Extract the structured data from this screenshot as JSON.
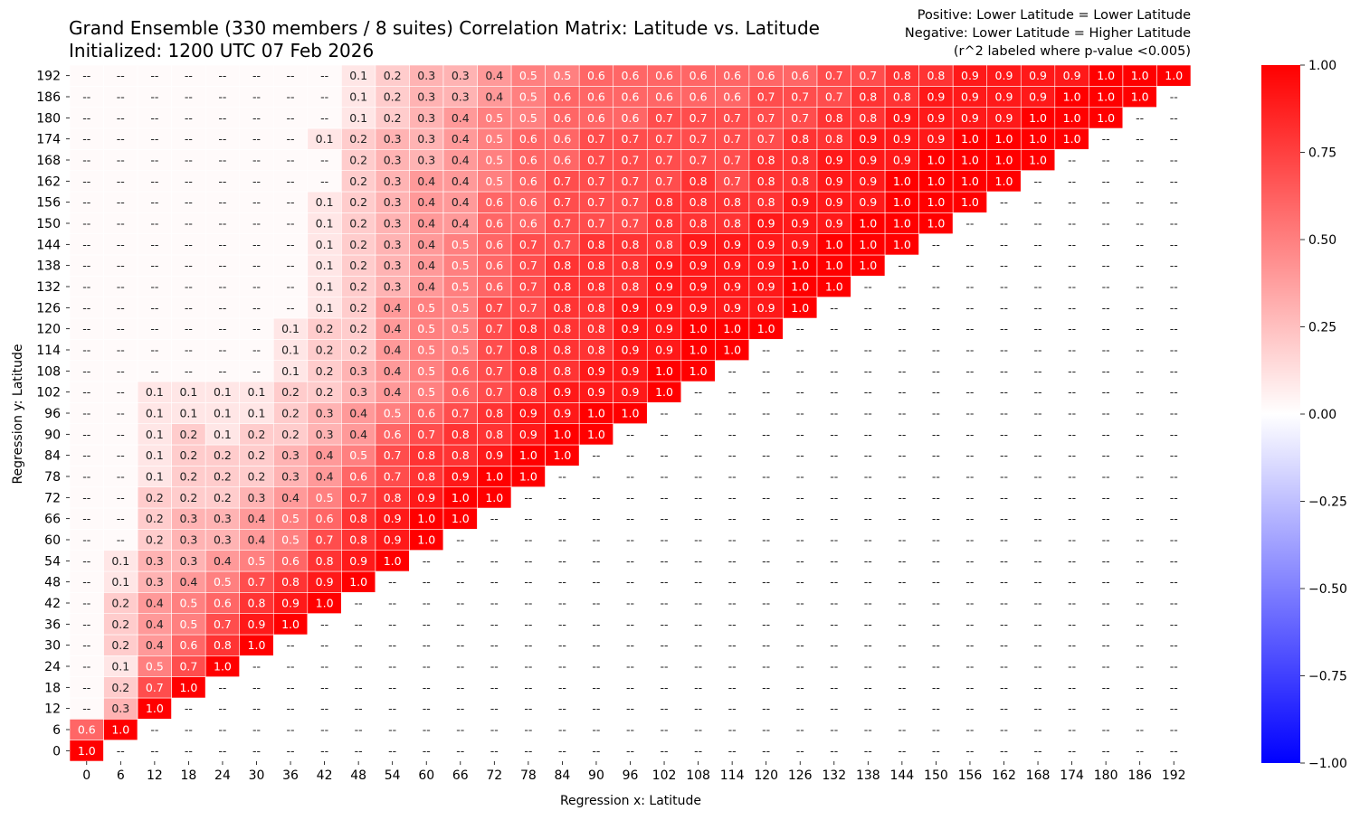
{
  "header": {
    "title_line1": "Grand Ensemble (330 members / 8 suites) Correlation Matrix: Latitude vs. Latitude",
    "title_line2": "Initialized: 1200 UTC 07 Feb 2026",
    "note_line1": "Positive: Lower Latitude = Lower Latitude",
    "note_line2": "Negative: Lower Latitude = Higher Latitude",
    "note_line3": "(r^2 labeled where p-value <0.005)"
  },
  "chart_data": {
    "type": "heatmap",
    "xlabel": "Regression x: Latitude",
    "ylabel": "Regression y: Latitude",
    "x_categories": [
      "0",
      "6",
      "12",
      "18",
      "24",
      "30",
      "36",
      "42",
      "48",
      "54",
      "60",
      "66",
      "72",
      "78",
      "84",
      "90",
      "96",
      "102",
      "108",
      "114",
      "120",
      "126",
      "132",
      "138",
      "144",
      "150",
      "156",
      "162",
      "168",
      "174",
      "180",
      "186",
      "192"
    ],
    "y_categories": [
      "0",
      "6",
      "12",
      "18",
      "24",
      "30",
      "36",
      "42",
      "48",
      "54",
      "60",
      "66",
      "72",
      "78",
      "84",
      "90",
      "96",
      "102",
      "108",
      "114",
      "120",
      "126",
      "132",
      "138",
      "144",
      "150",
      "156",
      "162",
      "168",
      "174",
      "180",
      "186",
      "192"
    ],
    "missing_label": "--",
    "rows": [
      [
        "1.0",
        "--",
        "--",
        "--",
        "--",
        "--",
        "--",
        "--",
        "--",
        "--",
        "--",
        "--",
        "--",
        "--",
        "--",
        "--",
        "--",
        "--",
        "--",
        "--",
        "--",
        "--",
        "--",
        "--",
        "--",
        "--",
        "--",
        "--",
        "--",
        "--",
        "--",
        "--",
        "--"
      ],
      [
        "0.6",
        "1.0",
        "--",
        "--",
        "--",
        "--",
        "--",
        "--",
        "--",
        "--",
        "--",
        "--",
        "--",
        "--",
        "--",
        "--",
        "--",
        "--",
        "--",
        "--",
        "--",
        "--",
        "--",
        "--",
        "--",
        "--",
        "--",
        "--",
        "--",
        "--",
        "--",
        "--",
        "--"
      ],
      [
        "--",
        "0.3",
        "1.0",
        "--",
        "--",
        "--",
        "--",
        "--",
        "--",
        "--",
        "--",
        "--",
        "--",
        "--",
        "--",
        "--",
        "--",
        "--",
        "--",
        "--",
        "--",
        "--",
        "--",
        "--",
        "--",
        "--",
        "--",
        "--",
        "--",
        "--",
        "--",
        "--",
        "--"
      ],
      [
        "--",
        "0.2",
        "0.7",
        "1.0",
        "--",
        "--",
        "--",
        "--",
        "--",
        "--",
        "--",
        "--",
        "--",
        "--",
        "--",
        "--",
        "--",
        "--",
        "--",
        "--",
        "--",
        "--",
        "--",
        "--",
        "--",
        "--",
        "--",
        "--",
        "--",
        "--",
        "--",
        "--",
        "--"
      ],
      [
        "--",
        "0.1",
        "0.5",
        "0.7",
        "1.0",
        "--",
        "--",
        "--",
        "--",
        "--",
        "--",
        "--",
        "--",
        "--",
        "--",
        "--",
        "--",
        "--",
        "--",
        "--",
        "--",
        "--",
        "--",
        "--",
        "--",
        "--",
        "--",
        "--",
        "--",
        "--",
        "--",
        "--",
        "--"
      ],
      [
        "--",
        "0.2",
        "0.4",
        "0.6",
        "0.8",
        "1.0",
        "--",
        "--",
        "--",
        "--",
        "--",
        "--",
        "--",
        "--",
        "--",
        "--",
        "--",
        "--",
        "--",
        "--",
        "--",
        "--",
        "--",
        "--",
        "--",
        "--",
        "--",
        "--",
        "--",
        "--",
        "--",
        "--",
        "--"
      ],
      [
        "--",
        "0.2",
        "0.4",
        "0.5",
        "0.7",
        "0.9",
        "1.0",
        "--",
        "--",
        "--",
        "--",
        "--",
        "--",
        "--",
        "--",
        "--",
        "--",
        "--",
        "--",
        "--",
        "--",
        "--",
        "--",
        "--",
        "--",
        "--",
        "--",
        "--",
        "--",
        "--",
        "--",
        "--",
        "--"
      ],
      [
        "--",
        "0.2",
        "0.4",
        "0.5",
        "0.6",
        "0.8",
        "0.9",
        "1.0",
        "--",
        "--",
        "--",
        "--",
        "--",
        "--",
        "--",
        "--",
        "--",
        "--",
        "--",
        "--",
        "--",
        "--",
        "--",
        "--",
        "--",
        "--",
        "--",
        "--",
        "--",
        "--",
        "--",
        "--",
        "--"
      ],
      [
        "--",
        "0.1",
        "0.3",
        "0.4",
        "0.5",
        "0.7",
        "0.8",
        "0.9",
        "1.0",
        "--",
        "--",
        "--",
        "--",
        "--",
        "--",
        "--",
        "--",
        "--",
        "--",
        "--",
        "--",
        "--",
        "--",
        "--",
        "--",
        "--",
        "--",
        "--",
        "--",
        "--",
        "--",
        "--",
        "--"
      ],
      [
        "--",
        "0.1",
        "0.3",
        "0.3",
        "0.4",
        "0.5",
        "0.6",
        "0.8",
        "0.9",
        "1.0",
        "--",
        "--",
        "--",
        "--",
        "--",
        "--",
        "--",
        "--",
        "--",
        "--",
        "--",
        "--",
        "--",
        "--",
        "--",
        "--",
        "--",
        "--",
        "--",
        "--",
        "--",
        "--",
        "--"
      ],
      [
        "--",
        "--",
        "0.2",
        "0.3",
        "0.3",
        "0.4",
        "0.5",
        "0.7",
        "0.8",
        "0.9",
        "1.0",
        "--",
        "--",
        "--",
        "--",
        "--",
        "--",
        "--",
        "--",
        "--",
        "--",
        "--",
        "--",
        "--",
        "--",
        "--",
        "--",
        "--",
        "--",
        "--",
        "--",
        "--",
        "--"
      ],
      [
        "--",
        "--",
        "0.2",
        "0.3",
        "0.3",
        "0.4",
        "0.5",
        "0.6",
        "0.8",
        "0.9",
        "1.0",
        "1.0",
        "--",
        "--",
        "--",
        "--",
        "--",
        "--",
        "--",
        "--",
        "--",
        "--",
        "--",
        "--",
        "--",
        "--",
        "--",
        "--",
        "--",
        "--",
        "--",
        "--",
        "--"
      ],
      [
        "--",
        "--",
        "0.2",
        "0.2",
        "0.2",
        "0.3",
        "0.4",
        "0.5",
        "0.7",
        "0.8",
        "0.9",
        "1.0",
        "1.0",
        "--",
        "--",
        "--",
        "--",
        "--",
        "--",
        "--",
        "--",
        "--",
        "--",
        "--",
        "--",
        "--",
        "--",
        "--",
        "--",
        "--",
        "--",
        "--",
        "--"
      ],
      [
        "--",
        "--",
        "0.1",
        "0.2",
        "0.2",
        "0.2",
        "0.3",
        "0.4",
        "0.6",
        "0.7",
        "0.8",
        "0.9",
        "1.0",
        "1.0",
        "--",
        "--",
        "--",
        "--",
        "--",
        "--",
        "--",
        "--",
        "--",
        "--",
        "--",
        "--",
        "--",
        "--",
        "--",
        "--",
        "--",
        "--",
        "--"
      ],
      [
        "--",
        "--",
        "0.1",
        "0.2",
        "0.2",
        "0.2",
        "0.3",
        "0.4",
        "0.5",
        "0.7",
        "0.8",
        "0.8",
        "0.9",
        "1.0",
        "1.0",
        "--",
        "--",
        "--",
        "--",
        "--",
        "--",
        "--",
        "--",
        "--",
        "--",
        "--",
        "--",
        "--",
        "--",
        "--",
        "--",
        "--",
        "--"
      ],
      [
        "--",
        "--",
        "0.1",
        "0.2",
        "0.1",
        "0.2",
        "0.2",
        "0.3",
        "0.4",
        "0.6",
        "0.7",
        "0.8",
        "0.8",
        "0.9",
        "1.0",
        "1.0",
        "--",
        "--",
        "--",
        "--",
        "--",
        "--",
        "--",
        "--",
        "--",
        "--",
        "--",
        "--",
        "--",
        "--",
        "--",
        "--",
        "--"
      ],
      [
        "--",
        "--",
        "0.1",
        "0.1",
        "0.1",
        "0.1",
        "0.2",
        "0.3",
        "0.4",
        "0.5",
        "0.6",
        "0.7",
        "0.8",
        "0.9",
        "0.9",
        "1.0",
        "1.0",
        "--",
        "--",
        "--",
        "--",
        "--",
        "--",
        "--",
        "--",
        "--",
        "--",
        "--",
        "--",
        "--",
        "--",
        "--",
        "--"
      ],
      [
        "--",
        "--",
        "0.1",
        "0.1",
        "0.1",
        "0.1",
        "0.2",
        "0.2",
        "0.3",
        "0.4",
        "0.5",
        "0.6",
        "0.7",
        "0.8",
        "0.9",
        "0.9",
        "0.9",
        "1.0",
        "--",
        "--",
        "--",
        "--",
        "--",
        "--",
        "--",
        "--",
        "--",
        "--",
        "--",
        "--",
        "--",
        "--",
        "--"
      ],
      [
        "--",
        "--",
        "--",
        "--",
        "--",
        "--",
        "0.1",
        "0.2",
        "0.3",
        "0.4",
        "0.5",
        "0.6",
        "0.7",
        "0.8",
        "0.8",
        "0.9",
        "0.9",
        "1.0",
        "1.0",
        "--",
        "--",
        "--",
        "--",
        "--",
        "--",
        "--",
        "--",
        "--",
        "--",
        "--",
        "--",
        "--",
        "--"
      ],
      [
        "--",
        "--",
        "--",
        "--",
        "--",
        "--",
        "0.1",
        "0.2",
        "0.2",
        "0.4",
        "0.5",
        "0.5",
        "0.7",
        "0.8",
        "0.8",
        "0.8",
        "0.9",
        "0.9",
        "1.0",
        "1.0",
        "--",
        "--",
        "--",
        "--",
        "--",
        "--",
        "--",
        "--",
        "--",
        "--",
        "--",
        "--",
        "--"
      ],
      [
        "--",
        "--",
        "--",
        "--",
        "--",
        "--",
        "0.1",
        "0.2",
        "0.2",
        "0.4",
        "0.5",
        "0.5",
        "0.7",
        "0.8",
        "0.8",
        "0.8",
        "0.9",
        "0.9",
        "1.0",
        "1.0",
        "1.0",
        "--",
        "--",
        "--",
        "--",
        "--",
        "--",
        "--",
        "--",
        "--",
        "--",
        "--",
        "--"
      ],
      [
        "--",
        "--",
        "--",
        "--",
        "--",
        "--",
        "--",
        "0.1",
        "0.2",
        "0.4",
        "0.5",
        "0.5",
        "0.7",
        "0.7",
        "0.8",
        "0.8",
        "0.9",
        "0.9",
        "0.9",
        "0.9",
        "0.9",
        "1.0",
        "--",
        "--",
        "--",
        "--",
        "--",
        "--",
        "--",
        "--",
        "--",
        "--",
        "--"
      ],
      [
        "--",
        "--",
        "--",
        "--",
        "--",
        "--",
        "--",
        "0.1",
        "0.2",
        "0.3",
        "0.4",
        "0.5",
        "0.6",
        "0.7",
        "0.8",
        "0.8",
        "0.8",
        "0.9",
        "0.9",
        "0.9",
        "0.9",
        "1.0",
        "1.0",
        "--",
        "--",
        "--",
        "--",
        "--",
        "--",
        "--",
        "--",
        "--",
        "--"
      ],
      [
        "--",
        "--",
        "--",
        "--",
        "--",
        "--",
        "--",
        "0.1",
        "0.2",
        "0.3",
        "0.4",
        "0.5",
        "0.6",
        "0.7",
        "0.8",
        "0.8",
        "0.8",
        "0.9",
        "0.9",
        "0.9",
        "0.9",
        "1.0",
        "1.0",
        "1.0",
        "--",
        "--",
        "--",
        "--",
        "--",
        "--",
        "--",
        "--",
        "--"
      ],
      [
        "--",
        "--",
        "--",
        "--",
        "--",
        "--",
        "--",
        "0.1",
        "0.2",
        "0.3",
        "0.4",
        "0.5",
        "0.6",
        "0.7",
        "0.7",
        "0.8",
        "0.8",
        "0.8",
        "0.9",
        "0.9",
        "0.9",
        "0.9",
        "1.0",
        "1.0",
        "1.0",
        "--",
        "--",
        "--",
        "--",
        "--",
        "--",
        "--",
        "--"
      ],
      [
        "--",
        "--",
        "--",
        "--",
        "--",
        "--",
        "--",
        "0.1",
        "0.2",
        "0.3",
        "0.4",
        "0.4",
        "0.6",
        "0.6",
        "0.7",
        "0.7",
        "0.7",
        "0.8",
        "0.8",
        "0.8",
        "0.9",
        "0.9",
        "0.9",
        "1.0",
        "1.0",
        "1.0",
        "--",
        "--",
        "--",
        "--",
        "--",
        "--",
        "--"
      ],
      [
        "--",
        "--",
        "--",
        "--",
        "--",
        "--",
        "--",
        "0.1",
        "0.2",
        "0.3",
        "0.4",
        "0.4",
        "0.6",
        "0.6",
        "0.7",
        "0.7",
        "0.7",
        "0.8",
        "0.8",
        "0.8",
        "0.8",
        "0.9",
        "0.9",
        "0.9",
        "1.0",
        "1.0",
        "1.0",
        "--",
        "--",
        "--",
        "--",
        "--",
        "--"
      ],
      [
        "--",
        "--",
        "--",
        "--",
        "--",
        "--",
        "--",
        "--",
        "0.2",
        "0.3",
        "0.4",
        "0.4",
        "0.5",
        "0.6",
        "0.7",
        "0.7",
        "0.7",
        "0.7",
        "0.8",
        "0.7",
        "0.8",
        "0.8",
        "0.9",
        "0.9",
        "1.0",
        "1.0",
        "1.0",
        "1.0",
        "--",
        "--",
        "--",
        "--",
        "--"
      ],
      [
        "--",
        "--",
        "--",
        "--",
        "--",
        "--",
        "--",
        "--",
        "0.2",
        "0.3",
        "0.3",
        "0.4",
        "0.5",
        "0.6",
        "0.6",
        "0.7",
        "0.7",
        "0.7",
        "0.7",
        "0.7",
        "0.8",
        "0.8",
        "0.9",
        "0.9",
        "0.9",
        "1.0",
        "1.0",
        "1.0",
        "1.0",
        "--",
        "--",
        "--",
        "--"
      ],
      [
        "--",
        "--",
        "--",
        "--",
        "--",
        "--",
        "--",
        "0.1",
        "0.2",
        "0.3",
        "0.3",
        "0.4",
        "0.5",
        "0.6",
        "0.6",
        "0.7",
        "0.7",
        "0.7",
        "0.7",
        "0.7",
        "0.7",
        "0.8",
        "0.8",
        "0.9",
        "0.9",
        "0.9",
        "1.0",
        "1.0",
        "1.0",
        "1.0",
        "--",
        "--",
        "--"
      ],
      [
        "--",
        "--",
        "--",
        "--",
        "--",
        "--",
        "--",
        "--",
        "0.1",
        "0.2",
        "0.3",
        "0.4",
        "0.5",
        "0.5",
        "0.6",
        "0.6",
        "0.6",
        "0.7",
        "0.7",
        "0.7",
        "0.7",
        "0.7",
        "0.8",
        "0.8",
        "0.9",
        "0.9",
        "0.9",
        "0.9",
        "1.0",
        "1.0",
        "1.0",
        "--",
        "--"
      ],
      [
        "--",
        "--",
        "--",
        "--",
        "--",
        "--",
        "--",
        "--",
        "0.1",
        "0.2",
        "0.3",
        "0.3",
        "0.4",
        "0.5",
        "0.6",
        "0.6",
        "0.6",
        "0.6",
        "0.6",
        "0.6",
        "0.7",
        "0.7",
        "0.7",
        "0.8",
        "0.8",
        "0.9",
        "0.9",
        "0.9",
        "0.9",
        "1.0",
        "1.0",
        "1.0",
        "--"
      ],
      [
        "--",
        "--",
        "--",
        "--",
        "--",
        "--",
        "--",
        "--",
        "0.1",
        "0.2",
        "0.3",
        "0.3",
        "0.4",
        "0.5",
        "0.5",
        "0.6",
        "0.6",
        "0.6",
        "0.6",
        "0.6",
        "0.6",
        "0.6",
        "0.7",
        "0.7",
        "0.8",
        "0.8",
        "0.9",
        "0.9",
        "0.9",
        "0.9",
        "1.0",
        "1.0",
        "1.0"
      ]
    ],
    "colorbar": {
      "min": -1.0,
      "max": 1.0,
      "ticks": [
        "1.00",
        "0.75",
        "0.50",
        "0.25",
        "0.00",
        "−0.25",
        "−0.50",
        "−0.75",
        "−1.00"
      ],
      "low_color": "#0000ff",
      "mid_color": "#ffffff",
      "high_color": "#ff0000"
    }
  }
}
